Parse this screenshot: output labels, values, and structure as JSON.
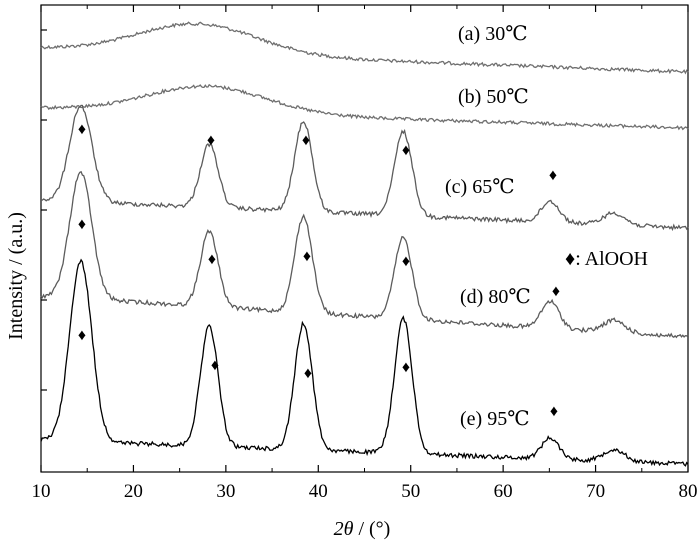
{
  "chart_data": {
    "type": "line",
    "xlabel_symbol": "2θ",
    "xlabel_unit": " / (°)",
    "ylabel": "Intensity / (a.u.)",
    "xlim": [
      10,
      80
    ],
    "x_ticks": [
      10,
      20,
      30,
      40,
      50,
      60,
      70,
      80
    ],
    "grid": false,
    "legend": "♦: AlOOH",
    "marker_symbol": "♦",
    "series": [
      {
        "name": "(a) 30℃",
        "color": "#6f6f6f",
        "offset": 0,
        "amorphous_hump": {
          "center": 27,
          "height": 0.1
        },
        "peaks_marked": []
      },
      {
        "name": "(b) 50℃",
        "color": "#6f6f6f",
        "offset": 0,
        "amorphous_hump": {
          "center": 28,
          "height": 0.09
        },
        "peaks_marked": []
      },
      {
        "name": "(c) 65℃",
        "color": "#5c5c5c",
        "offset": 0,
        "peaks_marked": [
          14.3,
          28.2,
          38.4,
          49.2,
          65.1
        ],
        "peak_heights": [
          0.32,
          0.21,
          0.3,
          0.28,
          0.07
        ]
      },
      {
        "name": "(d) 80℃",
        "color": "#5c5c5c",
        "offset": 0,
        "peaks_marked": [
          14.3,
          28.2,
          38.4,
          49.2,
          65.1
        ],
        "peak_heights": [
          0.42,
          0.25,
          0.32,
          0.27,
          0.09
        ]
      },
      {
        "name": "(e) 95℃",
        "color": "#000000",
        "offset": 0,
        "peaks_marked": [
          14.3,
          28.2,
          38.4,
          49.2,
          65.1
        ],
        "peak_heights": [
          0.6,
          0.4,
          0.42,
          0.45,
          0.07
        ]
      }
    ]
  }
}
